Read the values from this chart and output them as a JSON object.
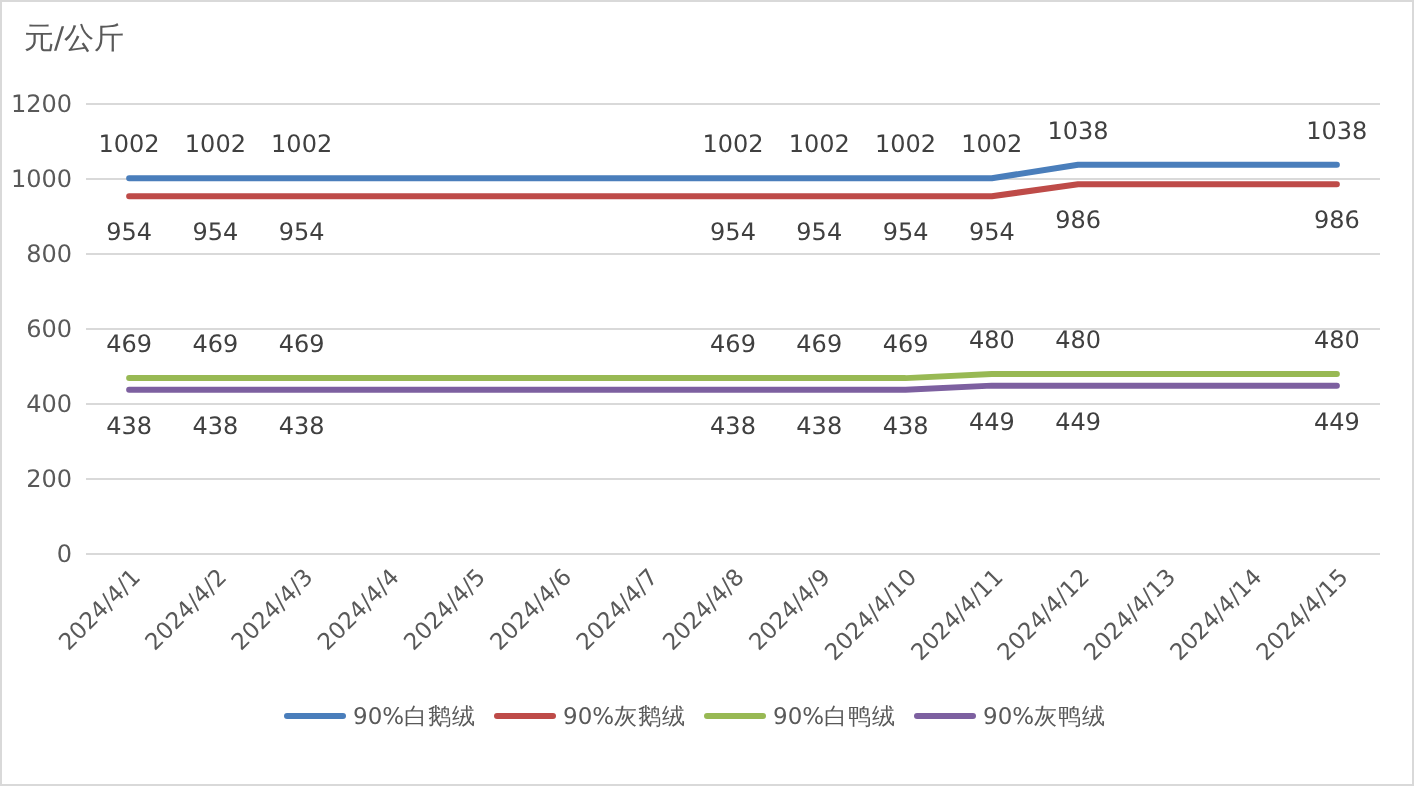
{
  "chart_data": {
    "type": "line",
    "ylabel": "元/公斤",
    "categories": [
      "2024/4/1",
      "2024/4/2",
      "2024/4/3",
      "2024/4/4",
      "2024/4/5",
      "2024/4/6",
      "2024/4/7",
      "2024/4/8",
      "2024/4/9",
      "2024/4/10",
      "2024/4/11",
      "2024/4/12",
      "2024/4/13",
      "2024/4/14",
      "2024/4/15"
    ],
    "series": [
      {
        "name": "90%白鹅绒",
        "color": "#4a7ebb",
        "values": [
          1002,
          1002,
          1002,
          1002,
          1002,
          1002,
          1002,
          1002,
          1002,
          1002,
          1002,
          1038,
          1038,
          1038,
          1038
        ],
        "value_labels": [
          "1002",
          "1002",
          "1002",
          null,
          null,
          null,
          null,
          "1002",
          "1002",
          "1002",
          "1002",
          "1038",
          null,
          null,
          "1038"
        ]
      },
      {
        "name": "90%灰鹅绒",
        "color": "#be4b48",
        "values": [
          954,
          954,
          954,
          954,
          954,
          954,
          954,
          954,
          954,
          954,
          954,
          986,
          986,
          986,
          986
        ],
        "value_labels": [
          "954",
          "954",
          "954",
          null,
          null,
          null,
          null,
          "954",
          "954",
          "954",
          "954",
          "986",
          null,
          null,
          "986"
        ]
      },
      {
        "name": "90%白鸭绒",
        "color": "#98b954",
        "values": [
          469,
          469,
          469,
          469,
          469,
          469,
          469,
          469,
          469,
          469,
          480,
          480,
          480,
          480,
          480
        ],
        "value_labels": [
          "469",
          "469",
          "469",
          null,
          null,
          null,
          null,
          "469",
          "469",
          "469",
          "480",
          "480",
          null,
          null,
          "480"
        ]
      },
      {
        "name": "90%灰鸭绒",
        "color": "#7d60a0",
        "values": [
          438,
          438,
          438,
          438,
          438,
          438,
          438,
          438,
          438,
          438,
          449,
          449,
          449,
          449,
          449
        ],
        "value_labels": [
          "438",
          "438",
          "438",
          null,
          null,
          null,
          null,
          "438",
          "438",
          "438",
          "449",
          "449",
          null,
          null,
          "449"
        ]
      }
    ],
    "ylim": [
      0,
      1200
    ],
    "yticks": [
      0,
      200,
      400,
      600,
      800,
      1000,
      1200
    ],
    "grid": "y",
    "legend": "bottom",
    "line_style": "solid",
    "marker": "none"
  }
}
